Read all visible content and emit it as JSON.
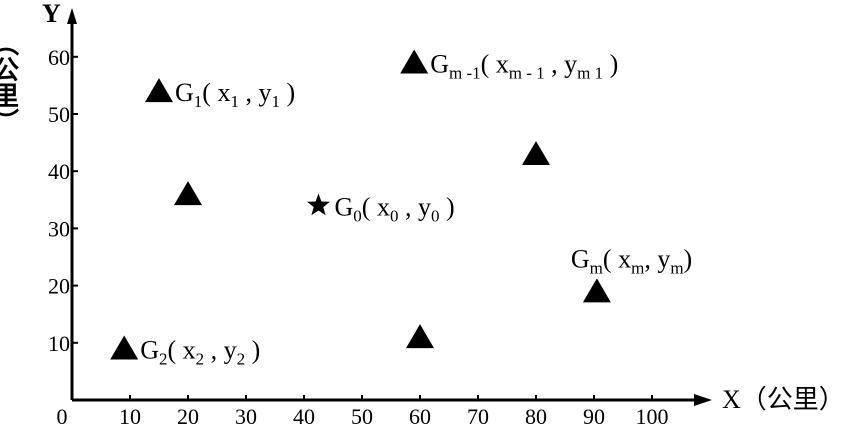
{
  "chart_data": {
    "type": "scatter",
    "title": "",
    "xlabel": "X（公里）",
    "ylabel_letter": "Y",
    "ylabel_unit": "（公里）",
    "xlim": [
      0,
      110
    ],
    "ylim": [
      0,
      65
    ],
    "x_ticks": [
      "0",
      "10",
      "20",
      "30",
      "40",
      "50",
      "60",
      "70",
      "80",
      "90",
      "100"
    ],
    "y_ticks": [
      "10",
      "20",
      "30",
      "40",
      "50",
      "60"
    ],
    "grid": false,
    "points": [
      {
        "x": 15,
        "y": 54,
        "marker": "triangle",
        "label": [
          {
            "t": "G"
          },
          {
            "t": "1",
            "sub": true
          },
          {
            "t": "( x"
          },
          {
            "t": "1",
            "sub": true
          },
          {
            "t": " , y"
          },
          {
            "t": "1",
            "sub": true
          },
          {
            "t": " )"
          }
        ]
      },
      {
        "x": 20,
        "y": 36,
        "marker": "triangle",
        "label": []
      },
      {
        "x": 42.5,
        "y": 34,
        "marker": "star",
        "label": [
          {
            "t": "G"
          },
          {
            "t": "0",
            "sub": true
          },
          {
            "t": "( x"
          },
          {
            "t": "0",
            "sub": true
          },
          {
            "t": " , y"
          },
          {
            "t": "0",
            "sub": true
          },
          {
            "t": " )"
          }
        ]
      },
      {
        "x": 59,
        "y": 59,
        "marker": "triangle",
        "label": [
          {
            "t": "G"
          },
          {
            "t": "m -1",
            "sub": true
          },
          {
            "t": "( x"
          },
          {
            "t": "m - 1",
            "sub": true
          },
          {
            "t": " , y"
          },
          {
            "t": "m  1",
            "sub": true
          },
          {
            "t": " )"
          }
        ]
      },
      {
        "x": 80,
        "y": 43,
        "marker": "triangle",
        "label": []
      },
      {
        "x": 90.5,
        "y": 19,
        "marker": "triangle",
        "label": [
          {
            "t": "G"
          },
          {
            "t": "m",
            "sub": true
          },
          {
            "t": "( x"
          },
          {
            "t": "m",
            "sub": true
          },
          {
            "t": ", y"
          },
          {
            "t": "m",
            "sub": true
          },
          {
            "t": ")"
          }
        ]
      },
      {
        "x": 9,
        "y": 9,
        "marker": "triangle",
        "label": [
          {
            "t": "G"
          },
          {
            "t": "2",
            "sub": true
          },
          {
            "t": "( x"
          },
          {
            "t": "2",
            "sub": true
          },
          {
            "t": " , y"
          },
          {
            "t": "2",
            "sub": true
          },
          {
            "t": " )"
          }
        ]
      },
      {
        "x": 60,
        "y": 11,
        "marker": "triangle",
        "label": []
      }
    ],
    "colors": {
      "ink": "#000000",
      "background": "#ffffff"
    }
  }
}
